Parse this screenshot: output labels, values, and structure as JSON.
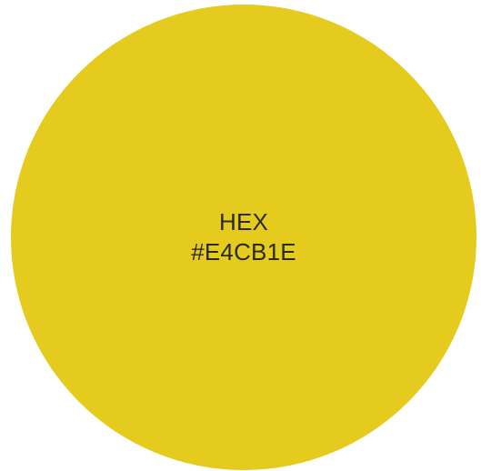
{
  "swatch": {
    "color": "#E4CB1E",
    "label": "HEX",
    "hex_text": "#E4CB1E"
  }
}
